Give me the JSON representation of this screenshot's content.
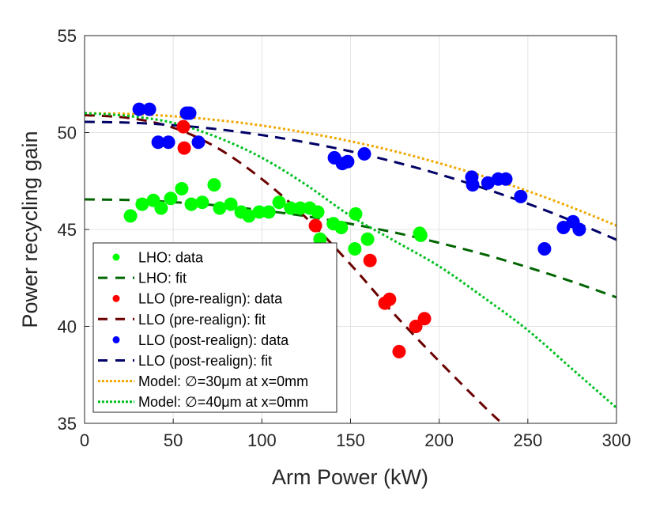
{
  "chart_data": {
    "type": "scatter",
    "title": "",
    "xlabel": "Arm Power (kW)",
    "ylabel": "Power recycling gain",
    "xlim": [
      0,
      300
    ],
    "ylim": [
      35,
      55
    ],
    "xticks": [
      0,
      50,
      100,
      150,
      200,
      250,
      300
    ],
    "yticks": [
      35,
      40,
      45,
      50,
      55
    ],
    "xtick_labels": [
      "0",
      "50",
      "100",
      "150",
      "200",
      "250",
      "300"
    ],
    "ytick_labels": [
      "35",
      "40",
      "45",
      "50",
      "55"
    ],
    "grid": true,
    "legend_placement": "bottom-left",
    "series": [
      {
        "name": "LHO: data",
        "kind": "points",
        "color": "#00ff00",
        "x": [
          25.9,
          32.5,
          38.8,
          43.2,
          48.6,
          54.8,
          60.2,
          66.4,
          73.1,
          76.2,
          82.5,
          88.3,
          92.7,
          98.5,
          103.9,
          109.7,
          116.3,
          121.7,
          127.0,
          131.5,
          132.8,
          140.3,
          144.8,
          152.9,
          152.4,
          159.6,
          189.0,
          189.6
        ],
        "y": [
          45.7,
          46.3,
          46.5,
          46.1,
          46.6,
          47.1,
          46.3,
          46.4,
          47.3,
          46.1,
          46.3,
          45.9,
          45.7,
          45.9,
          45.9,
          46.4,
          46.1,
          46.1,
          46.1,
          45.9,
          44.5,
          45.3,
          45.1,
          45.8,
          44.0,
          44.5,
          44.8,
          44.7
        ]
      },
      {
        "name": "LHO: fit",
        "kind": "dashed",
        "color": "#006400",
        "x": [
          0,
          25,
          50,
          75,
          100,
          125,
          150,
          175,
          200,
          225,
          250,
          275,
          300
        ],
        "y": [
          46.55,
          46.52,
          46.41,
          46.24,
          45.99,
          45.68,
          45.29,
          44.84,
          44.31,
          43.72,
          43.05,
          42.31,
          41.5
        ]
      },
      {
        "name": "LLO (pre-realign): data",
        "kind": "points",
        "color": "#ff0000",
        "x": [
          55.7,
          56.2,
          130.2,
          161.0,
          169.4,
          172.0,
          191.7,
          186.8,
          177.4
        ],
        "y": [
          50.3,
          49.2,
          45.2,
          43.4,
          41.2,
          41.4,
          40.4,
          40.0,
          38.7
        ]
      },
      {
        "name": "LLO (pre-realign): fit",
        "kind": "dashed",
        "color": "#6b0000",
        "x": [
          0,
          25,
          50,
          75,
          100,
          125,
          150,
          175,
          200,
          225,
          235.4
        ],
        "y": [
          50.9,
          50.75,
          50.25,
          49.2,
          47.6,
          45.6,
          43.2,
          40.6,
          38.2,
          35.9,
          35.0
        ]
      },
      {
        "name": "LLO (post-realign): data",
        "kind": "points",
        "color": "#0000ff",
        "x": [
          30.8,
          36.6,
          41.5,
          47.3,
          57.5,
          59.3,
          64.2,
          140.9,
          145.4,
          148.4,
          157.8,
          218.4,
          218.9,
          227.5,
          233.3,
          237.6,
          246.0,
          259.4,
          270.1,
          275.5,
          279.0
        ],
        "y": [
          51.2,
          51.2,
          49.5,
          49.5,
          51.0,
          51.0,
          49.5,
          48.7,
          48.4,
          48.5,
          48.9,
          47.7,
          47.3,
          47.4,
          47.6,
          47.6,
          46.7,
          44.0,
          45.1,
          45.4,
          45.0
        ]
      },
      {
        "name": "LLO (post-realign): fit",
        "kind": "dashed",
        "color": "#000066",
        "x": [
          0,
          25,
          50,
          75,
          100,
          125,
          150,
          175,
          200,
          225,
          250,
          275,
          300
        ],
        "y": [
          50.55,
          50.51,
          50.38,
          50.17,
          49.87,
          49.49,
          49.03,
          48.48,
          47.85,
          47.13,
          46.33,
          45.44,
          44.47
        ]
      },
      {
        "name": "Model: ∅=30μm at x=0mm",
        "kind": "dotted",
        "color": "#f0a800",
        "x": [
          0,
          25,
          50,
          75,
          100,
          125,
          150,
          175,
          200,
          225,
          250,
          275,
          300
        ],
        "y": [
          51.0,
          50.96,
          50.84,
          50.64,
          50.36,
          49.99,
          49.55,
          49.03,
          48.42,
          47.74,
          46.98,
          46.13,
          45.2
        ]
      },
      {
        "name": "Model: ∅=40μm at x=0mm",
        "kind": "dotted",
        "color": "#00c020",
        "x": [
          0,
          25,
          50,
          75,
          100,
          125,
          150,
          175,
          200,
          225,
          250,
          275,
          300
        ],
        "y": [
          51.0,
          50.85,
          50.5,
          49.75,
          48.7,
          47.3,
          45.7,
          44.4,
          43.1,
          41.5,
          39.8,
          37.8,
          35.8
        ]
      }
    ]
  }
}
